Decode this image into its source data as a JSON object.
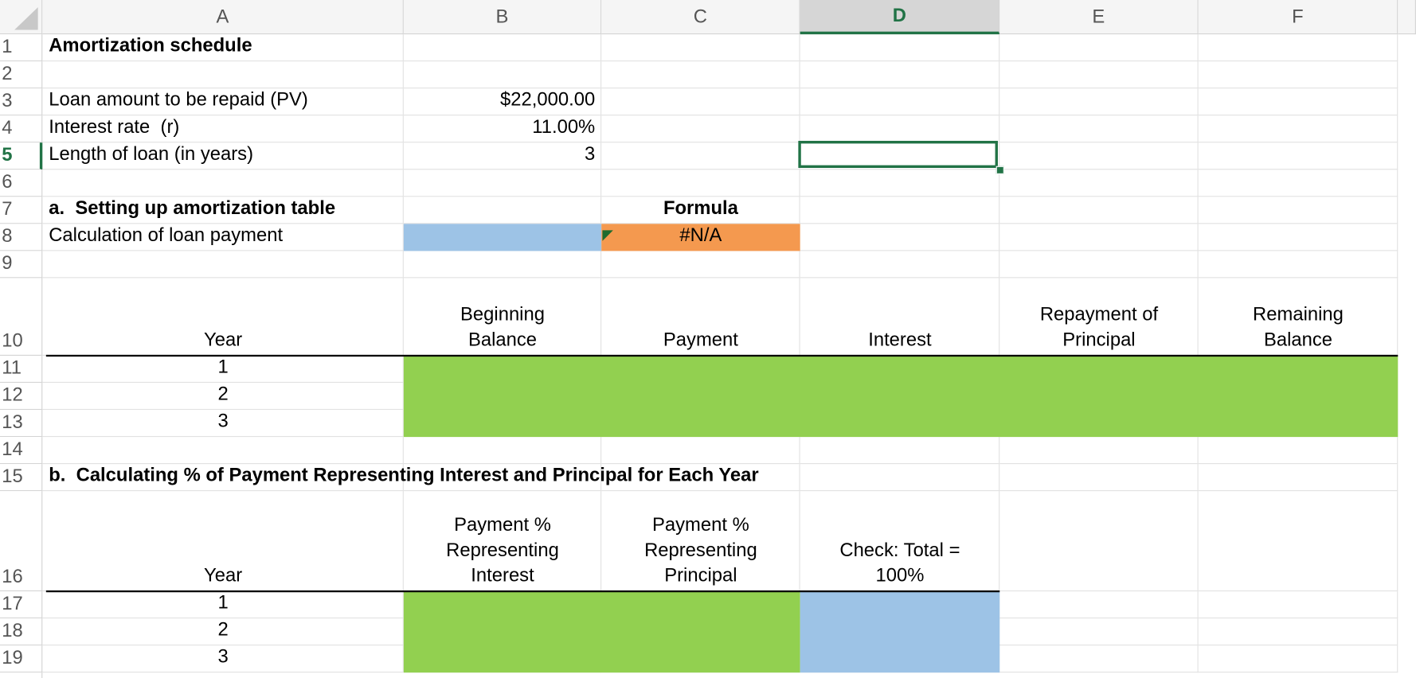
{
  "sheet": {
    "column_letters": [
      "A",
      "B",
      "C",
      "D",
      "E",
      "F"
    ],
    "row_numbers": [
      1,
      2,
      3,
      4,
      5,
      6,
      7,
      8,
      9,
      10,
      11,
      12,
      13,
      14,
      15,
      16,
      17,
      18,
      19
    ],
    "title": "Amortization schedule",
    "inputs": [
      {
        "label": "Loan amount to be repaid (PV)",
        "value": "$22,000.00"
      },
      {
        "label": "Interest rate  (r)",
        "value": "11.00%"
      },
      {
        "label": "Length of loan (in years)",
        "value": 3
      }
    ],
    "section_a": "a.  Setting up amortization table",
    "formula_header": "Formula",
    "payment_label": "Calculation of loan payment",
    "payment_formula": "#N/A",
    "table1": {
      "headers": [
        "Year",
        "Beginning Balance",
        "Payment",
        "Interest",
        "Repayment of Principal",
        "Remaining Balance"
      ],
      "years": [
        1,
        2,
        3
      ]
    },
    "section_b": "b.  Calculating % of Payment Representing Interest and Principal for Each Year",
    "table2": {
      "headers": [
        "Year",
        "Payment % Representing Interest",
        "Payment % Representing Principal",
        "Check:  Total = 100%"
      ],
      "years": [
        1,
        2,
        3
      ]
    }
  }
}
